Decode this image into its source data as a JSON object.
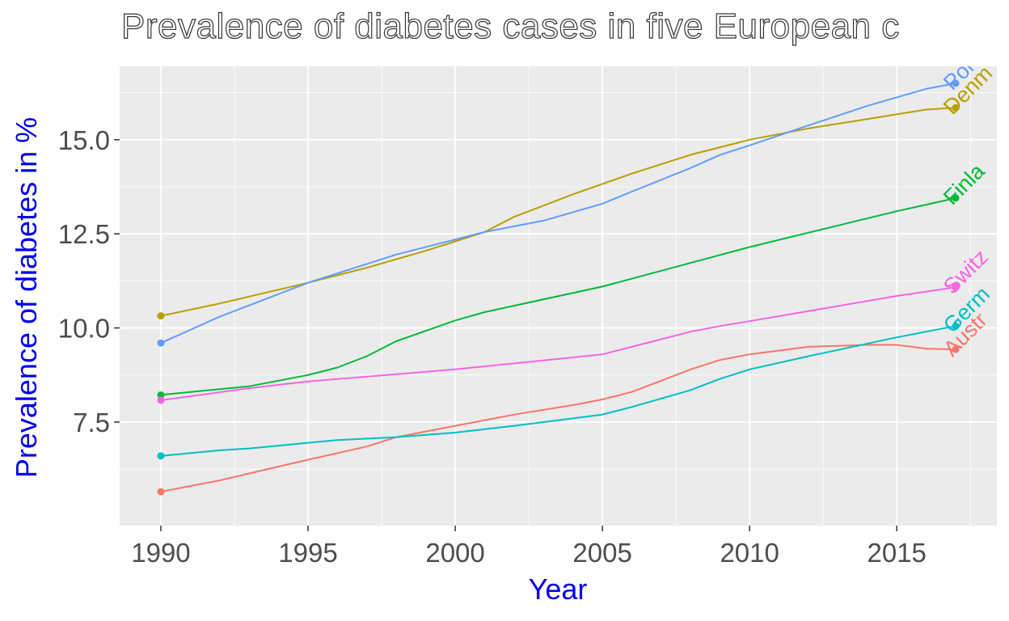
{
  "chart_data": {
    "type": "line",
    "title": "Prevalence of diabetes cases in five European c",
    "xlabel": "Year",
    "ylabel": "Prevalence of diabetes in %",
    "xlim": [
      1988.6,
      2018.4
    ],
    "ylim": [
      4.75,
      16.95
    ],
    "x_ticks": [
      1990,
      1995,
      2000,
      2005,
      2010,
      2015
    ],
    "x_tick_labels": [
      "1990",
      "1995",
      "2000",
      "2005",
      "2010",
      "2015"
    ],
    "y_ticks": [
      7.5,
      10.0,
      12.5,
      15.0
    ],
    "y_tick_labels": [
      "7.5",
      "10.0",
      "12.5",
      "15.0"
    ],
    "grid": true,
    "legend": "none",
    "series": [
      {
        "name": "Austria",
        "label": "Austr",
        "color": "#F8766D",
        "x": [
          1990,
          1992,
          1995,
          1997,
          1998,
          2000,
          2002,
          2004,
          2005,
          2006,
          2007,
          2008,
          2009,
          2010,
          2012,
          2014,
          2015,
          2016,
          2017
        ],
        "y": [
          5.65,
          5.95,
          6.5,
          6.85,
          7.1,
          7.4,
          7.7,
          7.95,
          8.1,
          8.3,
          8.6,
          8.9,
          9.15,
          9.3,
          9.5,
          9.55,
          9.55,
          9.45,
          9.43
        ]
      },
      {
        "name": "Denmark",
        "label": "Denm",
        "color": "#B79F00",
        "x": [
          1990,
          1992,
          1995,
          1997,
          1999,
          2000,
          2001,
          2002,
          2004,
          2006,
          2008,
          2010,
          2012,
          2014,
          2016,
          2017
        ],
        "y": [
          10.32,
          10.65,
          11.2,
          11.6,
          12.05,
          12.3,
          12.55,
          12.95,
          13.55,
          14.1,
          14.6,
          15.0,
          15.3,
          15.55,
          15.8,
          15.85
        ]
      },
      {
        "name": "Finland",
        "label": "Finla",
        "color": "#00BA38",
        "x": [
          1990,
          1993,
          1995,
          1996,
          1997,
          1998,
          2000,
          2001,
          2005,
          2010,
          2015,
          2017
        ],
        "y": [
          8.22,
          8.45,
          8.75,
          8.95,
          9.25,
          9.65,
          10.2,
          10.42,
          11.1,
          12.15,
          13.1,
          13.45
        ]
      },
      {
        "name": "Germany",
        "label": "Germ",
        "color": "#00BFC4",
        "x": [
          1990,
          1992,
          1993,
          1995,
          1996,
          1998,
          2000,
          2002,
          2005,
          2006,
          2008,
          2009,
          2010,
          2012,
          2015,
          2016,
          2017
        ],
        "y": [
          6.6,
          6.75,
          6.8,
          6.95,
          7.02,
          7.1,
          7.22,
          7.4,
          7.7,
          7.9,
          8.35,
          8.65,
          8.9,
          9.25,
          9.75,
          9.9,
          10.05
        ]
      },
      {
        "name": "Portugal",
        "label": "Port",
        "color": "#619CFF",
        "x": [
          1990,
          1991,
          1992,
          1994,
          1995,
          1996,
          1998,
          2000,
          2001,
          2003,
          2005,
          2006,
          2008,
          2009,
          2010,
          2012,
          2014,
          2016,
          2017
        ],
        "y": [
          9.6,
          9.95,
          10.3,
          10.9,
          11.2,
          11.45,
          11.95,
          12.35,
          12.55,
          12.85,
          13.3,
          13.62,
          14.25,
          14.6,
          14.85,
          15.38,
          15.9,
          16.35,
          16.5
        ]
      },
      {
        "name": "Switzerland",
        "label": "Switz",
        "color": "#F564E3",
        "x": [
          1990,
          1993,
          1995,
          2000,
          2005,
          2006,
          2008,
          2009,
          2010,
          2015,
          2017
        ],
        "y": [
          8.08,
          8.4,
          8.58,
          8.9,
          9.3,
          9.5,
          9.9,
          10.05,
          10.18,
          10.85,
          11.08
        ]
      }
    ]
  }
}
